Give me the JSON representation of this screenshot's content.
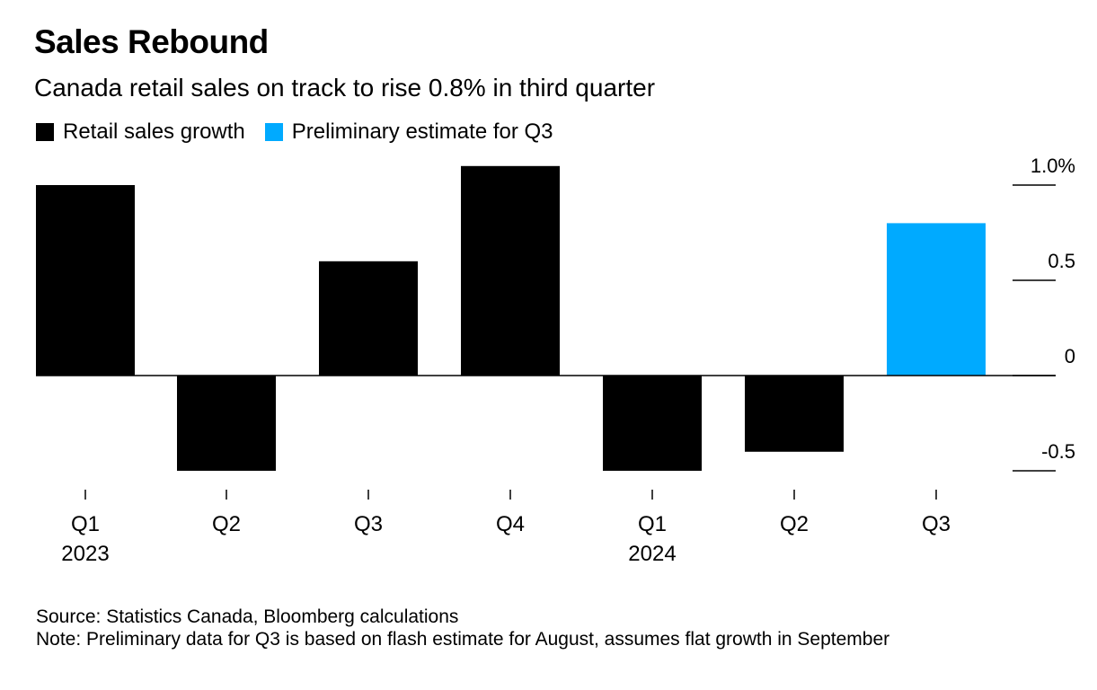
{
  "title": "Sales Rebound",
  "subtitle": "Canada retail sales on track to rise 0.8% in third quarter",
  "legend": [
    {
      "label": "Retail sales growth",
      "color": "#000000"
    },
    {
      "label": "Preliminary estimate for Q3",
      "color": "#00aaff"
    }
  ],
  "chart_data": {
    "type": "bar",
    "categories": [
      "Q1",
      "Q2",
      "Q3",
      "Q4",
      "Q1",
      "Q2",
      "Q3"
    ],
    "year_labels": [
      "2023",
      "",
      "",
      "",
      "2024",
      "",
      ""
    ],
    "series": [
      {
        "name": "Retail sales growth",
        "values": [
          1.0,
          -0.5,
          0.6,
          1.1,
          -0.5,
          -0.4,
          null
        ],
        "color": "#000000"
      },
      {
        "name": "Preliminary estimate for Q3",
        "values": [
          null,
          null,
          null,
          null,
          null,
          null,
          0.8
        ],
        "color": "#00aaff"
      }
    ],
    "y_ticks": [
      1.0,
      0.5,
      0,
      -0.5
    ],
    "y_tick_labels": [
      "1.0%",
      "0.5",
      "0",
      "-0.5"
    ],
    "ylim": [
      -0.6,
      1.1
    ],
    "axis_position": "right"
  },
  "source": "Source: Statistics Canada, Bloomberg calculations",
  "note": "Note: Preliminary data for Q3 is based on flash estimate for August, assumes flat growth in September"
}
